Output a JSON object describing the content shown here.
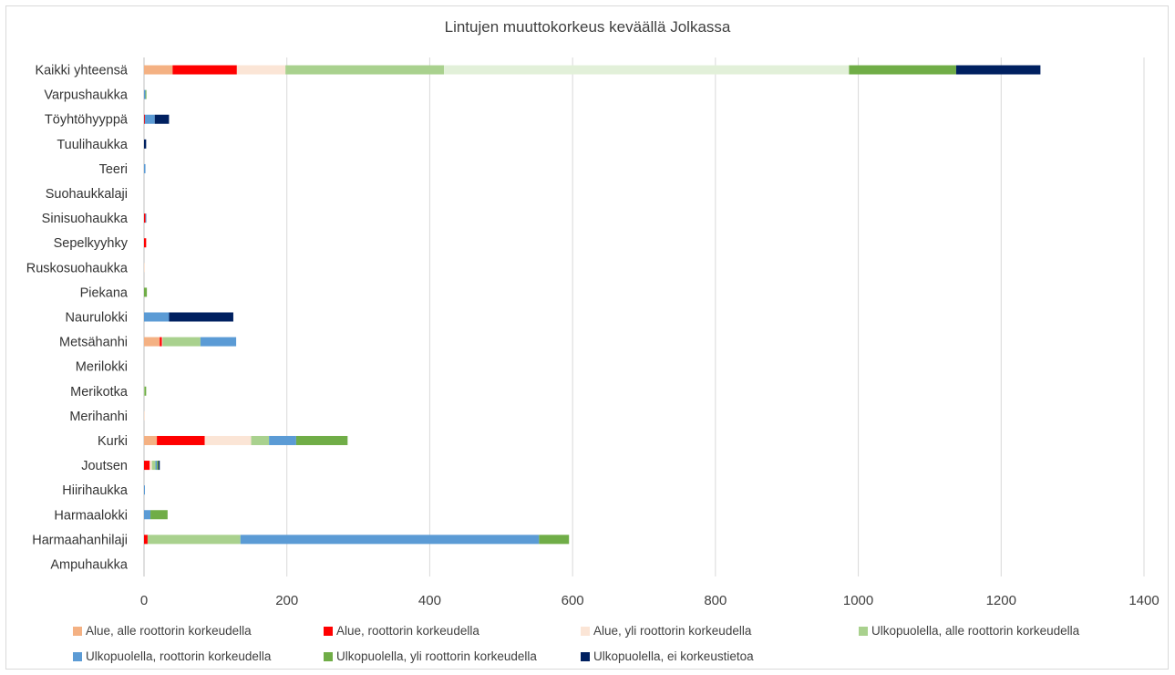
{
  "chart_data": {
    "type": "bar",
    "orientation": "horizontal",
    "stacked": true,
    "title": "Lintujen muuttokorkeus keväällä Jolkassa",
    "xlabel": "",
    "ylabel": "",
    "xlim": [
      0,
      1400
    ],
    "xticks": [
      "0",
      "200",
      "400",
      "600",
      "800",
      "1000",
      "1200",
      "1400"
    ],
    "grid": "vertical",
    "legend_position": "bottom",
    "categories": [
      "Kaikki yhteensä",
      "Varpushaukka",
      "Töyhtöhyyppä",
      "Tuulihaukka",
      "Teeri",
      "Suohaukkalaji",
      "Sinisuohaukka",
      "Sepelkyyhky",
      "Ruskosuohaukka",
      "Piekana",
      "Naurulokki",
      "Metsähanhi",
      "Merilokki",
      "Merikotka",
      "Merihanhi",
      "Kurki",
      "Joutsen",
      "Hiirihaukka",
      "Harmaalokki",
      "Harmaahanhilaji",
      "Ampuhaukka"
    ],
    "series": [
      {
        "name": "Alue, alle roottorin korkeudella",
        "color": "#f4b183",
        "values": [
          40,
          0,
          0,
          0,
          0,
          0,
          0,
          0,
          0,
          0,
          0,
          22,
          0,
          0,
          0,
          18,
          0,
          0,
          0,
          0,
          0
        ]
      },
      {
        "name": "Alue, roottorin korkeudella",
        "color": "#ff0000",
        "values": [
          90,
          0,
          1,
          0,
          0,
          0,
          2,
          3,
          0,
          0,
          0,
          3,
          0,
          0,
          0,
          67,
          8,
          0,
          0,
          5,
          0
        ]
      },
      {
        "name": "Alue, yli roottorin korkeudella",
        "color": "#fbe5d6",
        "values": [
          68,
          0,
          0,
          0,
          0,
          0,
          0,
          0,
          1,
          0,
          0,
          1,
          0,
          0,
          1,
          65,
          3,
          0,
          0,
          0,
          0
        ]
      },
      {
        "name": "Ulkopuolella, alle roottorin korkeudella",
        "color": "#a9d18e",
        "values": [
          222,
          0,
          0,
          0,
          0,
          0,
          0,
          0,
          0,
          0,
          0,
          53,
          0,
          1,
          0,
          25,
          5,
          0,
          0,
          130,
          0
        ]
      },
      {
        "name": "Ulkopuolella, roottorin korkeudella",
        "color": "#5b9bd5",
        "values": [
          0,
          2,
          14,
          0,
          2,
          0,
          1,
          0,
          0,
          0,
          35,
          50,
          0,
          0,
          0,
          38,
          2,
          1,
          9,
          418,
          0
        ]
      },
      {
        "name": "Ulkopuolella, yli roottorin korkeudella",
        "color": "#70ad47",
        "values": [
          150,
          1,
          0,
          0,
          0,
          0,
          0,
          0,
          0,
          4,
          0,
          0,
          0,
          2,
          0,
          72,
          2,
          0,
          24,
          42,
          0
        ]
      },
      {
        "name": "Ulkopuolella, ei korkeustietoa",
        "color": "#002060",
        "values": [
          118,
          0,
          20,
          3,
          0,
          0,
          0,
          0,
          0,
          0,
          90,
          0,
          0,
          0,
          0,
          0,
          2,
          0,
          0,
          0,
          0
        ]
      }
    ],
    "extra_fill": {
      "series_index": 3,
      "category_index": 0,
      "color": "#e2f0d9",
      "value": 567
    }
  }
}
